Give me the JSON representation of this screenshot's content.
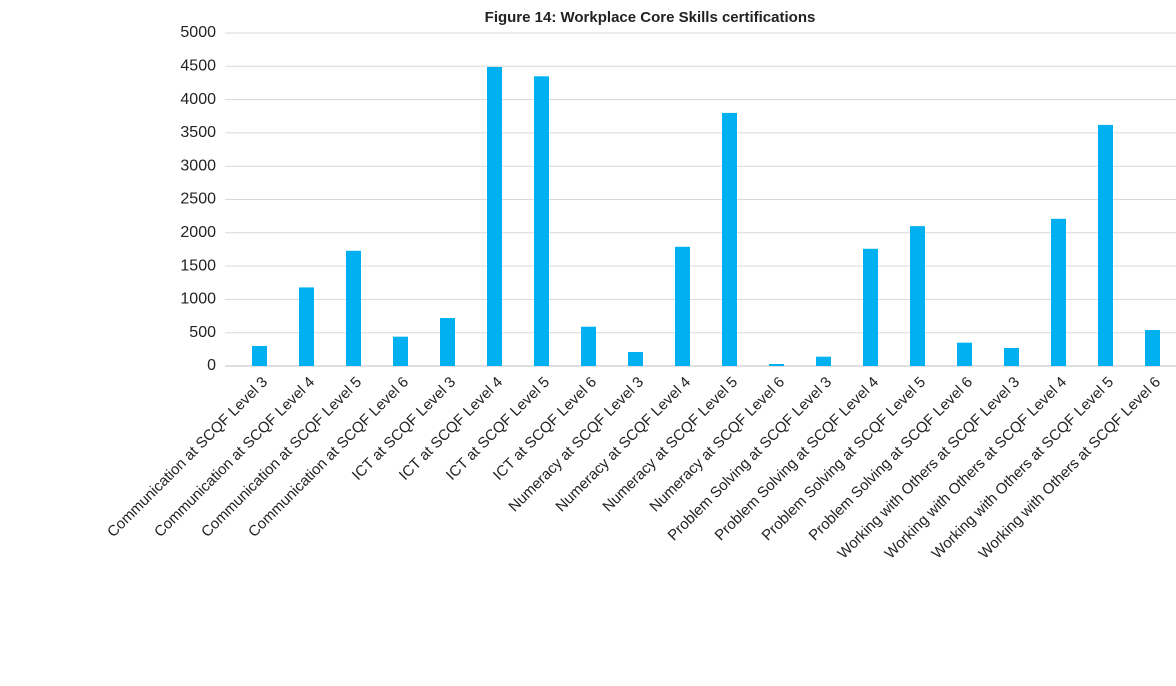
{
  "chart_data": {
    "type": "bar",
    "title": "Figure 14: Workplace Core Skills certifications",
    "categories": [
      "Communication at SCQF Level 3",
      "Communication at SCQF Level 4",
      "Communication at SCQF Level 5",
      "Communication at SCQF Level 6",
      "ICT at SCQF Level 3",
      "ICT at SCQF Level 4",
      "ICT at SCQF Level 5",
      "ICT at SCQF Level 6",
      "Numeracy at SCQF Level 3",
      "Numeracy at SCQF Level 4",
      "Numeracy at SCQF Level 5",
      "Numeracy at SCQF Level 6",
      "Problem Solving at SCQF Level 3",
      "Problem Solving at SCQF Level 4",
      "Problem Solving at SCQF Level 5",
      "Problem Solving at SCQF Level 6",
      "Working with Others at SCQF Level 3",
      "Working with Others at SCQF Level 4",
      "Working with Others at SCQF Level 5",
      "Working with Others at SCQF Level 6"
    ],
    "values": [
      300,
      1180,
      1730,
      440,
      720,
      4490,
      4350,
      590,
      210,
      1790,
      3800,
      30,
      140,
      1760,
      2100,
      350,
      270,
      2210,
      3620,
      540
    ],
    "color": "#00b0f0",
    "ylim": [
      0,
      5000
    ],
    "yticks": [
      0,
      500,
      1000,
      1500,
      2000,
      2500,
      3000,
      3500,
      4000,
      4500,
      5000
    ],
    "grid": true
  }
}
